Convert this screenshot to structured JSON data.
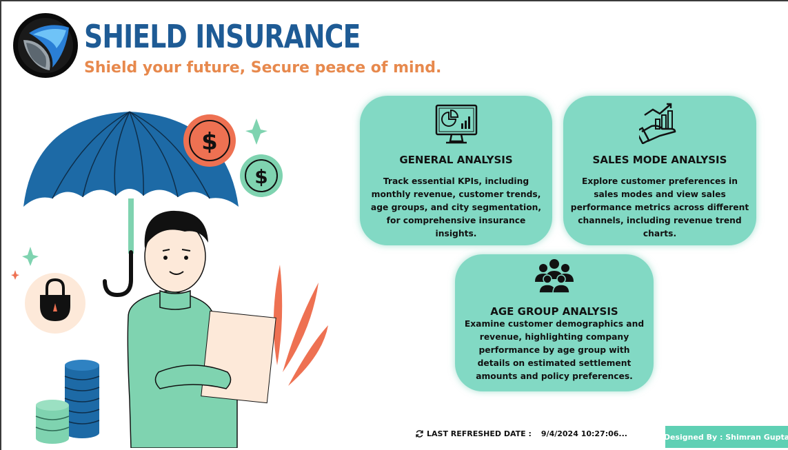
{
  "brand": {
    "title": "SHIELD INSURANCE",
    "tagline": "Shield your future, Secure peace of mind."
  },
  "cards": [
    {
      "id": "general",
      "icon": "dashboard-monitor-icon",
      "title": "GENERAL ANALYSIS",
      "description": "Track essential KPIs, including monthly revenue, customer trends, age groups, and city segmentation, for comprehensive insurance insights."
    },
    {
      "id": "sales",
      "icon": "growth-chart-hand-icon",
      "title": "SALES MODE ANALYSIS",
      "description": "Explore customer preferences in sales modes and view sales performance metrics across different channels, including revenue trend charts."
    },
    {
      "id": "age",
      "icon": "people-group-icon",
      "title": "AGE GROUP ANALYSIS",
      "description": "Examine customer demographics and revenue, highlighting company performance by age group with details on estimated settlement amounts and policy preferences."
    }
  ],
  "footer": {
    "refresh_label": "LAST REFRESHED DATE :",
    "refresh_value": "9/4/2024 10:27:06...",
    "designed_by": "Designed By : Shimran Gupta"
  },
  "illustration": {
    "dollar_symbol": "$"
  },
  "colors": {
    "brand_blue": "#1e5b95",
    "tagline_orange": "#e7894d",
    "card_teal": "#82d9c4",
    "footer_teal": "#5fd0b4",
    "umbrella_blue": "#1d6aa6",
    "coin_orange": "#ee7152",
    "mint": "#7fd3b0"
  }
}
